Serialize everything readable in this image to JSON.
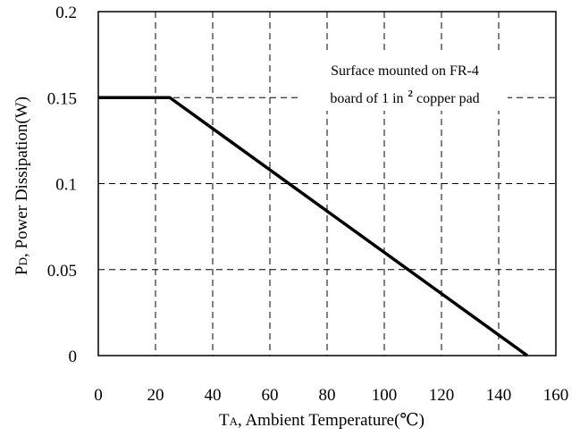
{
  "chart_data": {
    "type": "line",
    "title": "",
    "xlabel": "TA, Ambient Temperature(℃)",
    "xlabel_main": "T",
    "xlabel_sub": "A",
    "xlabel_rest": ", Ambient Temperature(℃)",
    "ylabel": "PD, Power Dissipation(W)",
    "ylabel_main": "P",
    "ylabel_sub": "D",
    "ylabel_rest": ", Power Dissipation(W)",
    "xlim": [
      0,
      160
    ],
    "ylim": [
      0,
      0.2
    ],
    "x_ticks": [
      0,
      20,
      40,
      60,
      80,
      100,
      120,
      140,
      160
    ],
    "x_tick_labels": [
      "0",
      "20",
      "40",
      "60",
      "80",
      "100",
      "120",
      "140",
      "160"
    ],
    "y_ticks": [
      0,
      0.05,
      0.1,
      0.15,
      0.2
    ],
    "y_tick_labels": [
      "0",
      "0.05",
      "0.1",
      "0.15",
      "0.2"
    ],
    "grid": true,
    "series": [
      {
        "x": [
          0,
          25,
          150
        ],
        "y": [
          0.15,
          0.15,
          0
        ]
      }
    ],
    "annotation": {
      "line1": "Surface mounted on FR-4",
      "line2_prefix": "board of 1 in",
      "line2_sup": "2",
      "line2_suffix": " copper pad"
    },
    "colors": {
      "line": "#000000",
      "grid": "#000000"
    }
  }
}
